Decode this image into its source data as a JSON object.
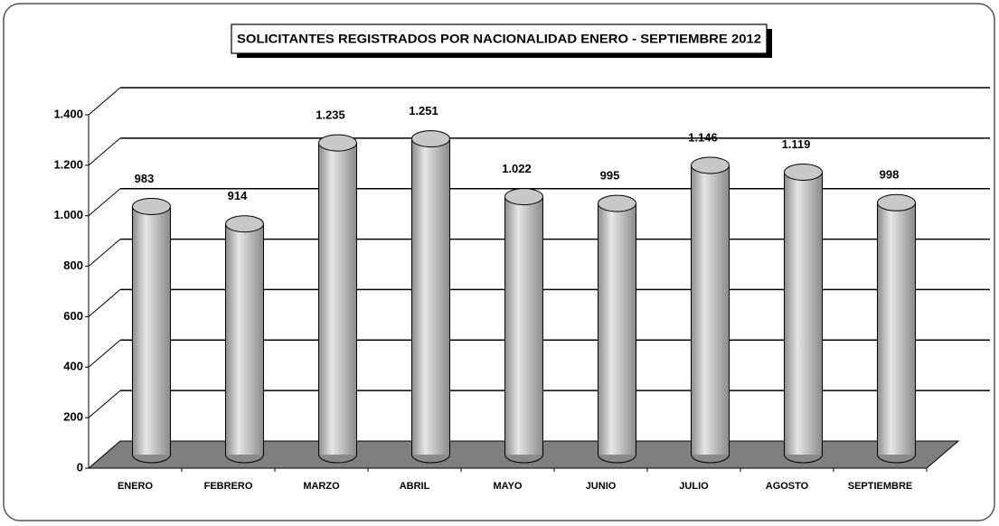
{
  "chart_data": {
    "type": "bar3d",
    "title": "SOLICITANTES REGISTRADOS  POR NACIONALIDAD ENERO - SEPTIEMBRE 2012",
    "categories": [
      "ENERO",
      "FEBRERO",
      "MARZO",
      "ABRIL",
      "MAYO",
      "JUNIO",
      "JULIO",
      "AGOSTO",
      "SEPTIEMBRE"
    ],
    "values": [
      983,
      914,
      1235,
      1251,
      1022,
      995,
      1146,
      1119,
      998
    ],
    "value_labels": [
      "983",
      "914",
      "1.235",
      "1.251",
      "1.022",
      "995",
      "1.146",
      "1.119",
      "998"
    ],
    "color": "#a6a6a6",
    "ylim": [
      0,
      1400
    ],
    "yticks": [
      0,
      200,
      400,
      600,
      800,
      {
        "value": 1000,
        "label": "1.000"
      },
      {
        "value": 1200,
        "label": "1.200"
      },
      {
        "value": 1400,
        "label": "1.400"
      }
    ],
    "grid": true
  }
}
